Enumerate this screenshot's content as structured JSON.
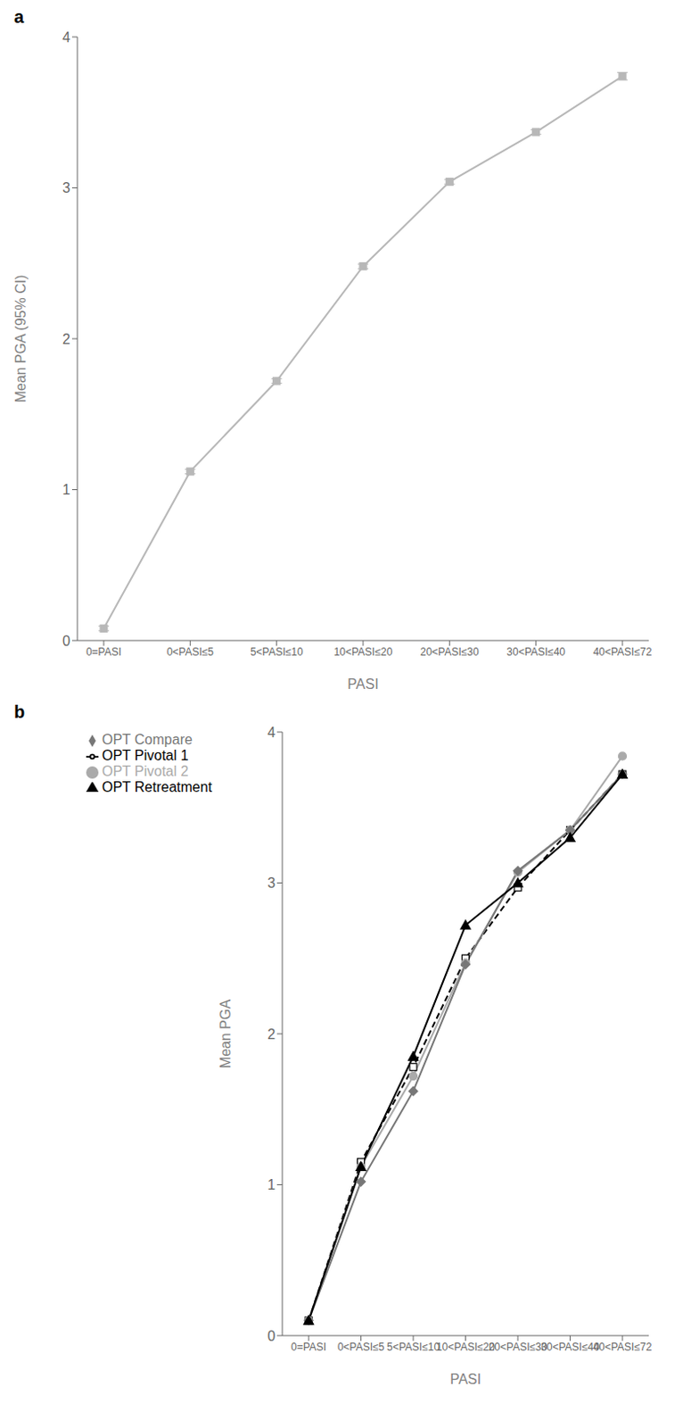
{
  "chart_data": [
    {
      "type": "line",
      "annotations": [
        "a"
      ],
      "x_label": "PASI",
      "y_label": "Mean PGA (95% CI)",
      "categories": [
        "0=PASI",
        "0<PASI≤5",
        "5<PASI≤10",
        "10<PASI≤20",
        "20<PASI≤30",
        "30<PASI≤40",
        "40<PASI≤72"
      ],
      "values": [
        0.08,
        1.12,
        1.72,
        2.48,
        3.04,
        3.37,
        3.74
      ],
      "errors": [
        0.015,
        0.015,
        0.015,
        0.015,
        0.015,
        0.015,
        0.025
      ],
      "color": "#b8b8b8",
      "marker": "square",
      "line_style": "solid",
      "ylim": [
        0,
        4
      ],
      "yticks": [
        0,
        1,
        2,
        3,
        4
      ],
      "grid": false
    },
    {
      "type": "line",
      "annotations": [
        "b"
      ],
      "x_label": "PASI",
      "y_label": "Mean PGA",
      "categories": [
        "0=PASI",
        "0<PASI≤5",
        "5<PASI≤10",
        "10<PASI≤20",
        "20<PASI≤30",
        "30<PASI≤40",
        "40<PASI≤72"
      ],
      "series": [
        {
          "name": "OPT Pivotal 1",
          "values": [
            0.1,
            1.15,
            1.78,
            2.5,
            2.97,
            3.35,
            3.72
          ],
          "color": "#000000",
          "marker": "open-square",
          "line_style": "dashed"
        },
        {
          "name": "OPT Pivotal 2",
          "values": [
            0.1,
            1.12,
            1.72,
            2.47,
            3.07,
            3.35,
            3.84
          ],
          "color": "#aaaaaa",
          "marker": "circle",
          "line_style": "solid"
        },
        {
          "name": "OPT Compare",
          "values": [
            0.1,
            1.02,
            1.62,
            2.46,
            3.08,
            3.35,
            3.72
          ],
          "color": "#777777",
          "marker": "diamond",
          "line_style": "solid"
        },
        {
          "name": "OPT Retreatment",
          "values": [
            0.1,
            1.12,
            1.85,
            2.72,
            3.0,
            3.3,
            3.72
          ],
          "color": "#000000",
          "marker": "triangle",
          "line_style": "solid"
        }
      ],
      "ylim": [
        0,
        4
      ],
      "yticks": [
        0,
        1,
        2,
        3,
        4
      ],
      "grid": false,
      "legend": "upper left"
    }
  ]
}
